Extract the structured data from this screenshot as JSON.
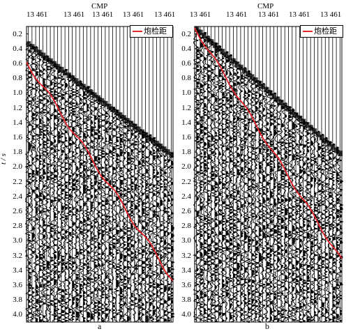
{
  "axis": {
    "top_title": "CMP",
    "y_label": "t / s",
    "top_tick_label": "13 461",
    "y_ticks": [
      "0.2",
      "0.4",
      "0.6",
      "0.8",
      "1.0",
      "1.2",
      "1.4",
      "1.6",
      "1.8",
      "2.0",
      "2.2",
      "2.4",
      "2.6",
      "2.8",
      "3.0",
      "3.2",
      "3.4",
      "3.6",
      "3.8",
      "4.0"
    ]
  },
  "legend": {
    "label": "炮检距"
  },
  "panels": [
    {
      "id": "a",
      "label": "a"
    },
    {
      "id": "b",
      "label": "b"
    }
  ],
  "colors": {
    "trace": "#000000",
    "offset_line": "#e8242b",
    "frame": "#000000"
  }
}
